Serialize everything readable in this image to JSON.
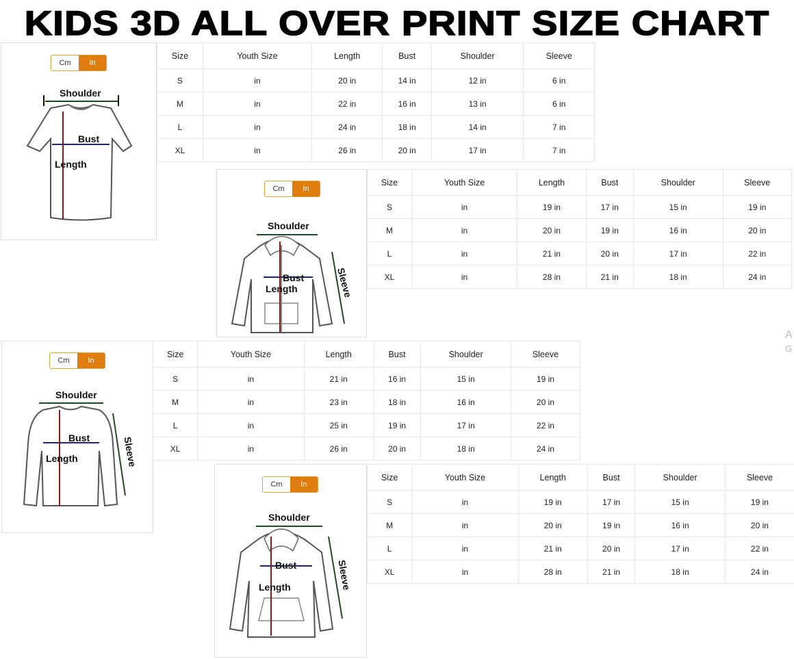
{
  "title": "KIDS 3D ALL OVER PRINT SIZE CHART",
  "watermark": {
    "line1": "A",
    "line2": "G"
  },
  "panels": [
    {
      "garment": "t-shirt",
      "toggle": {
        "cm": "Cm",
        "in": "In",
        "active": "In"
      },
      "labels": {
        "shoulder": "Shoulder",
        "bust": "Bust",
        "length": "Length"
      },
      "headers": [
        "Size",
        "Youth Size",
        "Length",
        "Bust",
        "Shoulder",
        "Sleeve"
      ],
      "rows": [
        [
          "S",
          "in",
          "20 in",
          "14 in",
          "12 in",
          "6 in"
        ],
        [
          "M",
          "in",
          "22 in",
          "16 in",
          "13 in",
          "6 in"
        ],
        [
          "L",
          "in",
          "24 in",
          "18 in",
          "14 in",
          "7 in"
        ],
        [
          "XL",
          "in",
          "26 in",
          "20 in",
          "17 in",
          "7 in"
        ]
      ]
    },
    {
      "garment": "zip-hoodie",
      "toggle": {
        "cm": "Cm",
        "in": "In",
        "active": "In"
      },
      "labels": {
        "shoulder": "Shoulder",
        "bust": "Bust",
        "length": "Length",
        "sleeve": "Sleeve"
      },
      "headers": [
        "Size",
        "Youth Size",
        "Length",
        "Bust",
        "Shoulder",
        "Sleeve"
      ],
      "rows": [
        [
          "S",
          "in",
          "19 in",
          "17 in",
          "15 in",
          "19 in"
        ],
        [
          "M",
          "in",
          "20 in",
          "19 in",
          "16 in",
          "20 in"
        ],
        [
          "L",
          "in",
          "21 in",
          "20 in",
          "17 in",
          "22 in"
        ],
        [
          "XL",
          "in",
          "28 in",
          "21 in",
          "18 in",
          "24 in"
        ]
      ]
    },
    {
      "garment": "long-sleeve",
      "toggle": {
        "cm": "Cm",
        "in": "In",
        "active": "In"
      },
      "labels": {
        "shoulder": "Shoulder",
        "bust": "Bust",
        "length": "Length",
        "sleeve": "Sleeve"
      },
      "headers": [
        "Size",
        "Youth Size",
        "Length",
        "Bust",
        "Shoulder",
        "Sleeve"
      ],
      "rows": [
        [
          "S",
          "in",
          "21 in",
          "16 in",
          "15 in",
          "19 in"
        ],
        [
          "M",
          "in",
          "23 in",
          "18 in",
          "16 in",
          "20 in"
        ],
        [
          "L",
          "in",
          "25 in",
          "19 in",
          "17 in",
          "22 in"
        ],
        [
          "XL",
          "in",
          "26 in",
          "20 in",
          "18 in",
          "24 in"
        ]
      ]
    },
    {
      "garment": "pullover-hoodie",
      "toggle": {
        "cm": "Cm",
        "in": "In",
        "active": "In"
      },
      "labels": {
        "shoulder": "Shoulder",
        "bust": "Bust",
        "length": "Length",
        "sleeve": "Sleeve"
      },
      "headers": [
        "Size",
        "Youth Size",
        "Length",
        "Bust",
        "Shoulder",
        "Sleeve"
      ],
      "rows": [
        [
          "S",
          "in",
          "19 in",
          "17 in",
          "15 in",
          "19 in"
        ],
        [
          "M",
          "in",
          "20 in",
          "19 in",
          "16 in",
          "20 in"
        ],
        [
          "L",
          "in",
          "21 in",
          "20 in",
          "17 in",
          "22 in"
        ],
        [
          "XL",
          "in",
          "28 in",
          "21 in",
          "18 in",
          "24 in"
        ]
      ]
    }
  ]
}
